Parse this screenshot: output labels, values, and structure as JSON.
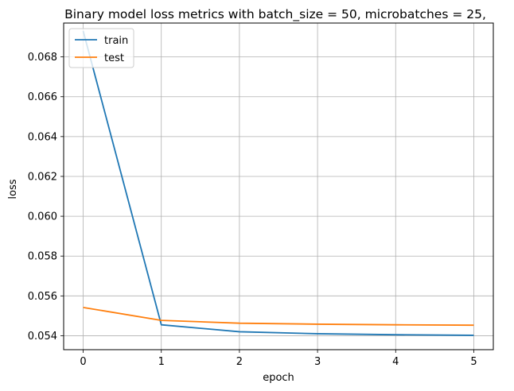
{
  "chart_data": {
    "type": "line",
    "title": "Binary model loss metrics with batch_size = 50, microbatches = 25,",
    "xlabel": "epoch",
    "ylabel": "loss",
    "x": [
      0,
      1,
      2,
      3,
      4,
      5
    ],
    "xticks": [
      "0",
      "1",
      "2",
      "3",
      "4",
      "5"
    ],
    "yticks": [
      "0.054",
      "0.056",
      "0.058",
      "0.060",
      "0.062",
      "0.064",
      "0.066",
      "0.068"
    ],
    "xlim": [
      -0.25,
      5.25
    ],
    "ylim": [
      0.0533,
      0.0697
    ],
    "grid": true,
    "legend_position": "upper left",
    "series": [
      {
        "name": "train",
        "color": "#1f77b4",
        "values": [
          0.0693,
          0.05455,
          0.0542,
          0.0541,
          0.05405,
          0.05402
        ]
      },
      {
        "name": "test",
        "color": "#ff7f0e",
        "values": [
          0.05542,
          0.05477,
          0.05463,
          0.05458,
          0.05455,
          0.05453
        ]
      }
    ]
  }
}
